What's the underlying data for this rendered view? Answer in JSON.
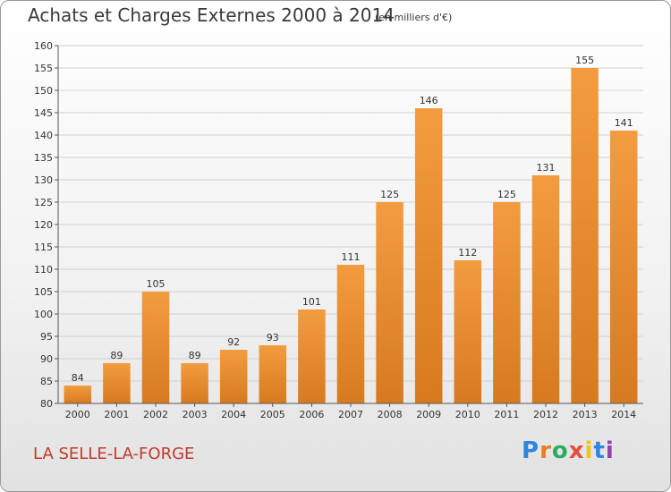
{
  "chart_data": {
    "type": "bar",
    "title": "Achats et Charges Externes 2000 à 2014",
    "subtitle": "(en milliers d'€)",
    "categories": [
      "2000",
      "2001",
      "2002",
      "2003",
      "2004",
      "2005",
      "2006",
      "2007",
      "2008",
      "2009",
      "2010",
      "2011",
      "2012",
      "2013",
      "2014"
    ],
    "values": [
      84,
      89,
      105,
      89,
      92,
      93,
      101,
      111,
      125,
      146,
      112,
      125,
      131,
      155,
      141
    ],
    "ylim": [
      80,
      160
    ],
    "yticks": [
      80,
      85,
      90,
      95,
      100,
      105,
      110,
      115,
      120,
      125,
      130,
      135,
      140,
      145,
      150,
      155,
      160
    ],
    "grid": true,
    "bar_color": "#f39c3f",
    "bar_color_dark": "#d77a1f"
  },
  "location": "LA SELLE-LA-FORGE",
  "logo": {
    "letters": [
      "P",
      "r",
      "o",
      "x",
      "i",
      "t",
      "i"
    ],
    "colors": [
      "#2e86de",
      "#e67e22",
      "#27ae60",
      "#e74c3c",
      "#f1c40f",
      "#2e86de",
      "#8e44ad"
    ]
  }
}
